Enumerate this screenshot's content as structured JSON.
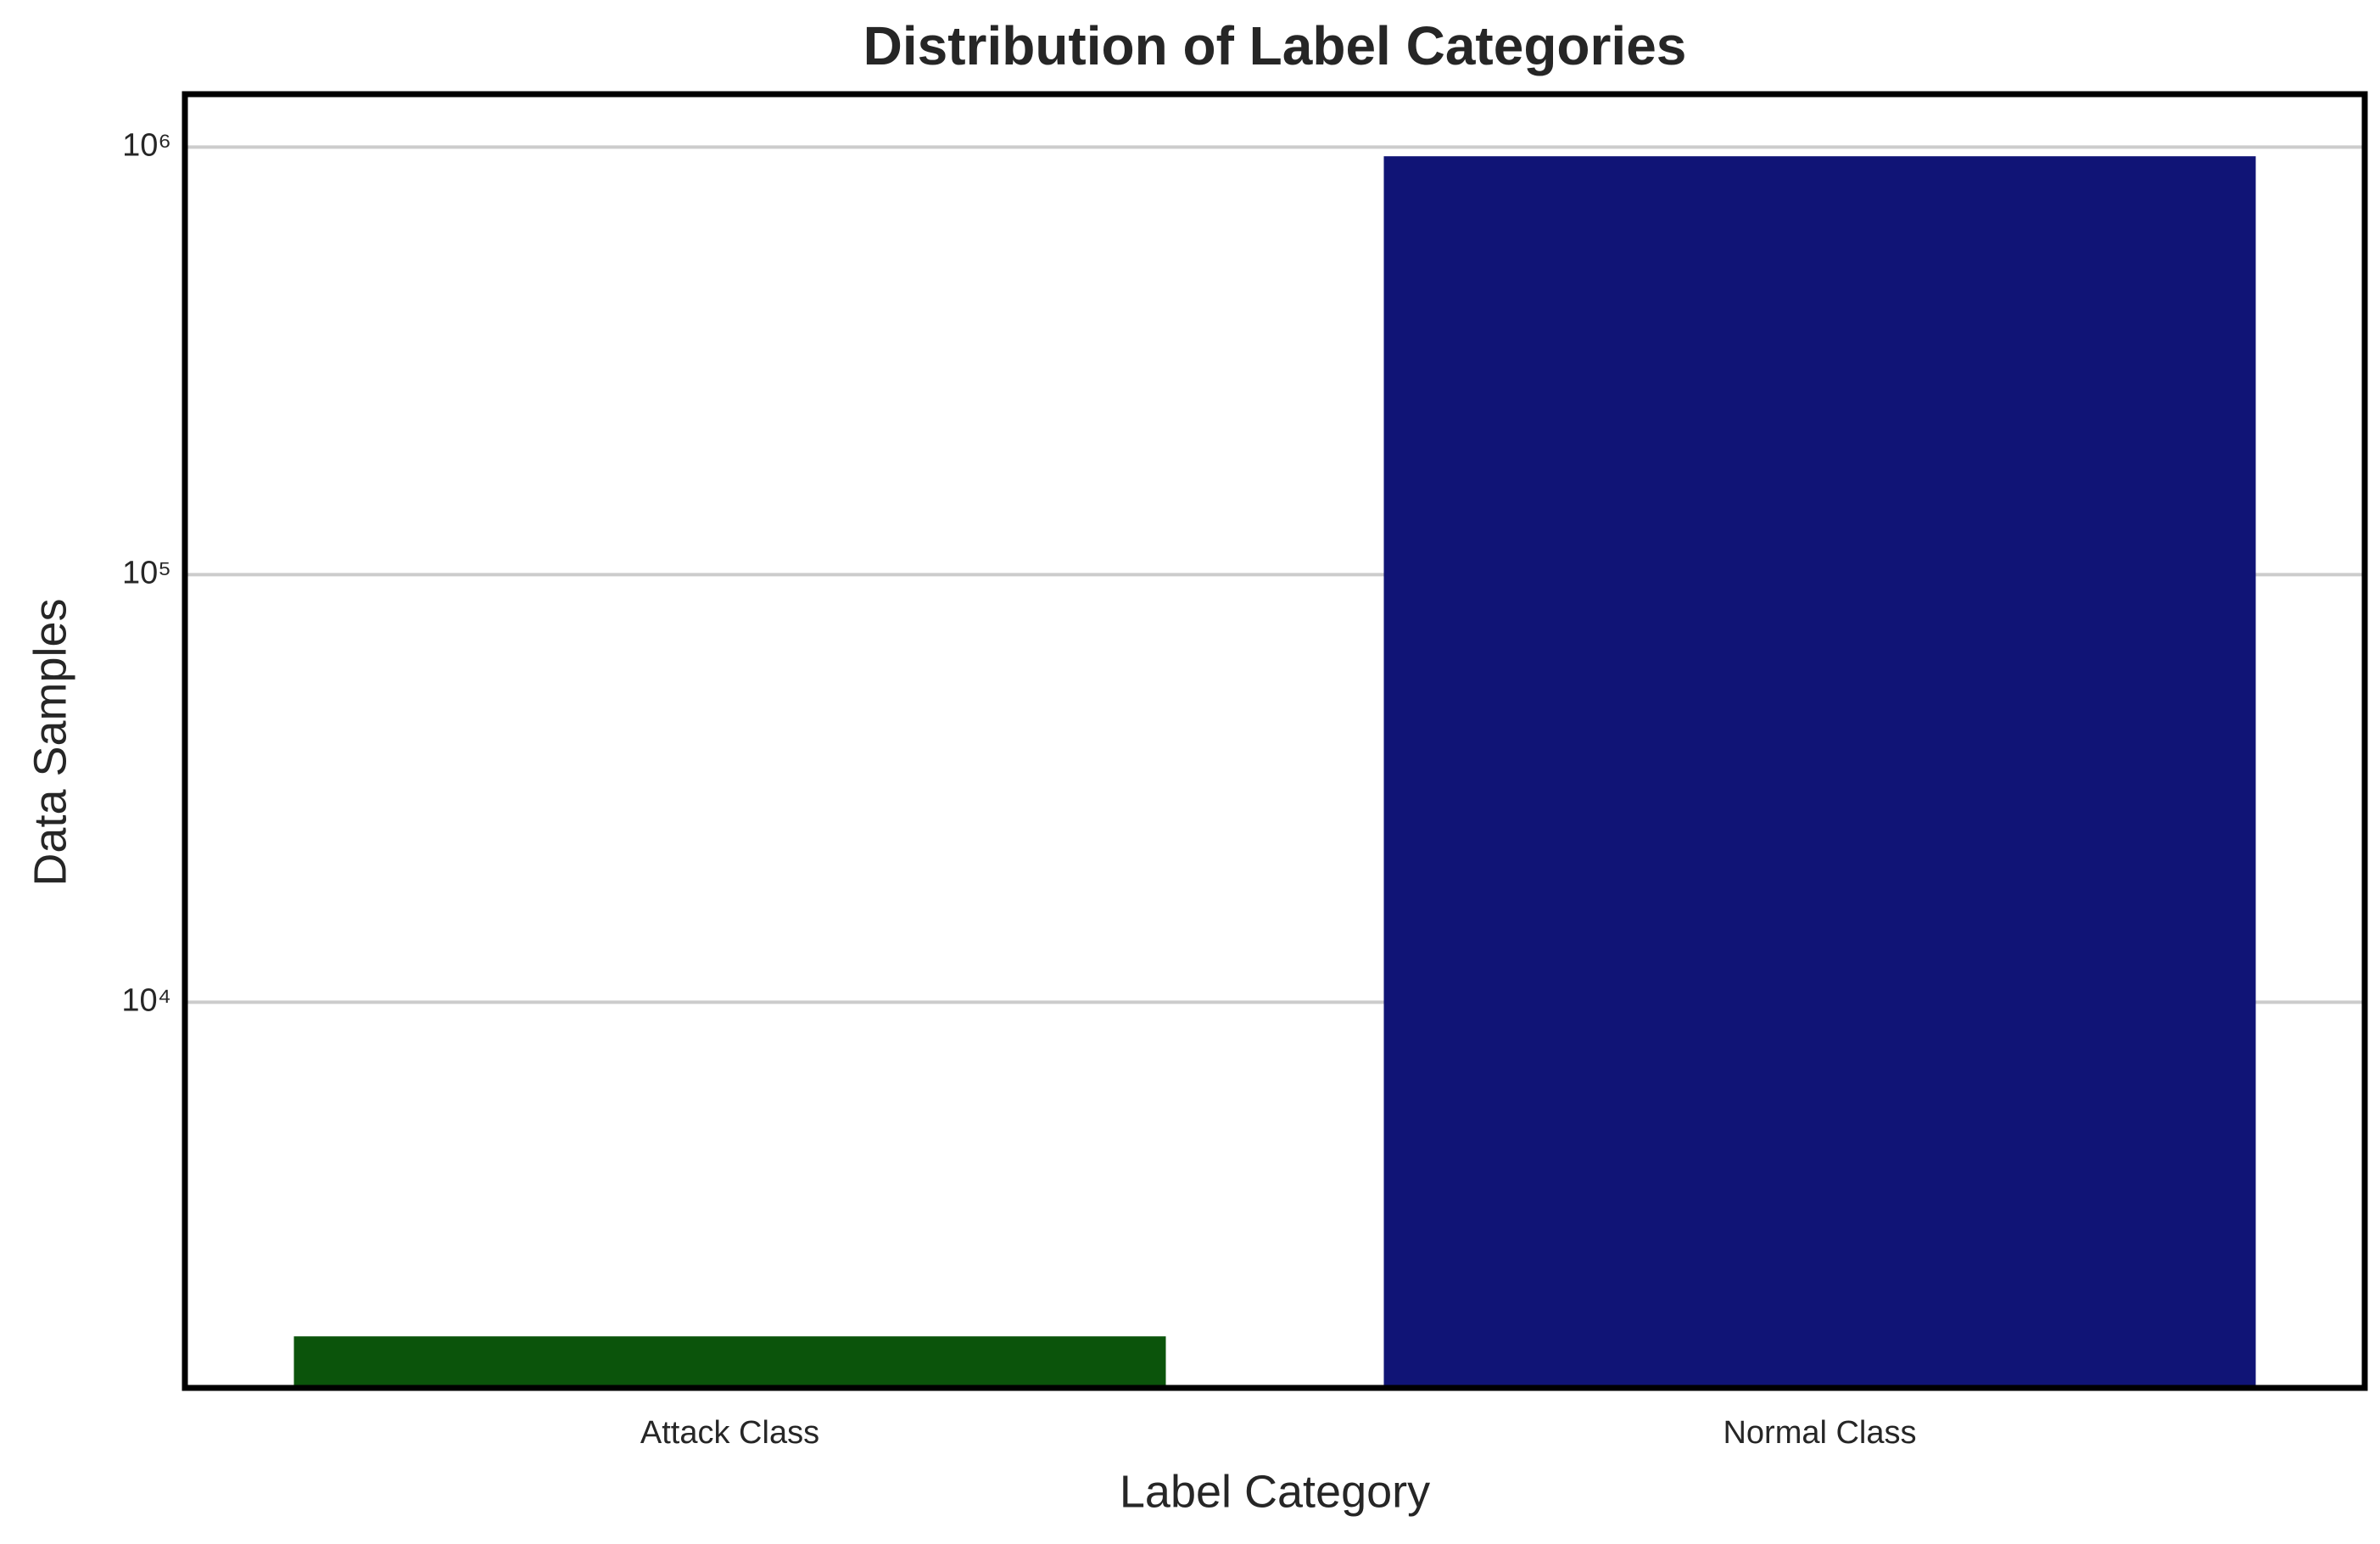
{
  "chart_data": {
    "type": "bar",
    "title": "Distribution of Label Categories",
    "x_label": "Label Category",
    "y_label": "Data Samples",
    "categories": [
      "Attack Class",
      "Normal Class"
    ],
    "values": [
      1654,
      952000
    ],
    "colors": [
      "#0b540b",
      "#101476"
    ],
    "y_scale": "log",
    "ylim": [
      1253,
      1330000
    ],
    "yticks": [
      {
        "value": 10000,
        "label": "10⁴"
      },
      {
        "value": 100000,
        "label": "10⁵"
      },
      {
        "value": 1000000,
        "label": "10⁶"
      }
    ],
    "grid": true
  }
}
